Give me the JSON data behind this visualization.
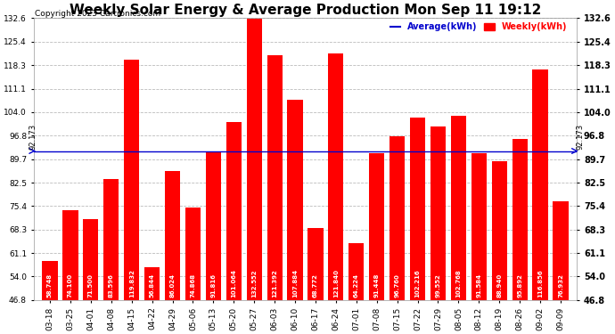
{
  "title": "Weekly Solar Energy & Average Production Mon Sep 11 19:12",
  "copyright": "Copyright 2023 Cartronics.com",
  "categories": [
    "03-18",
    "03-25",
    "04-01",
    "04-08",
    "04-15",
    "04-22",
    "04-29",
    "05-06",
    "05-13",
    "05-20",
    "05-27",
    "06-03",
    "06-10",
    "06-17",
    "06-24",
    "07-01",
    "07-08",
    "07-15",
    "07-22",
    "07-29",
    "08-05",
    "08-12",
    "08-19",
    "08-26",
    "09-02",
    "09-09"
  ],
  "values": [
    58.748,
    74.1,
    71.5,
    83.596,
    119.832,
    56.844,
    86.024,
    74.868,
    91.816,
    101.064,
    132.552,
    121.392,
    107.884,
    68.772,
    121.84,
    64.224,
    91.448,
    96.76,
    102.216,
    99.552,
    102.768,
    91.584,
    88.94,
    95.892,
    116.856,
    76.932
  ],
  "average": 92.173,
  "bar_color": "#ff0000",
  "average_color": "#0000cd",
  "background_color": "#ffffff",
  "grid_color": "#bbbbbb",
  "ylim_min": 46.8,
  "ylim_max": 132.6,
  "yticks": [
    46.8,
    54.0,
    61.1,
    68.3,
    75.4,
    82.5,
    89.7,
    96.8,
    104.0,
    111.1,
    118.3,
    125.4,
    132.6
  ],
  "legend_average": "Average(kWh)",
  "legend_weekly": "Weekly(kWh)",
  "avg_label": "92.173",
  "title_fontsize": 11,
  "tick_fontsize": 6.5,
  "value_fontsize": 5.0,
  "copyright_fontsize": 6.5
}
